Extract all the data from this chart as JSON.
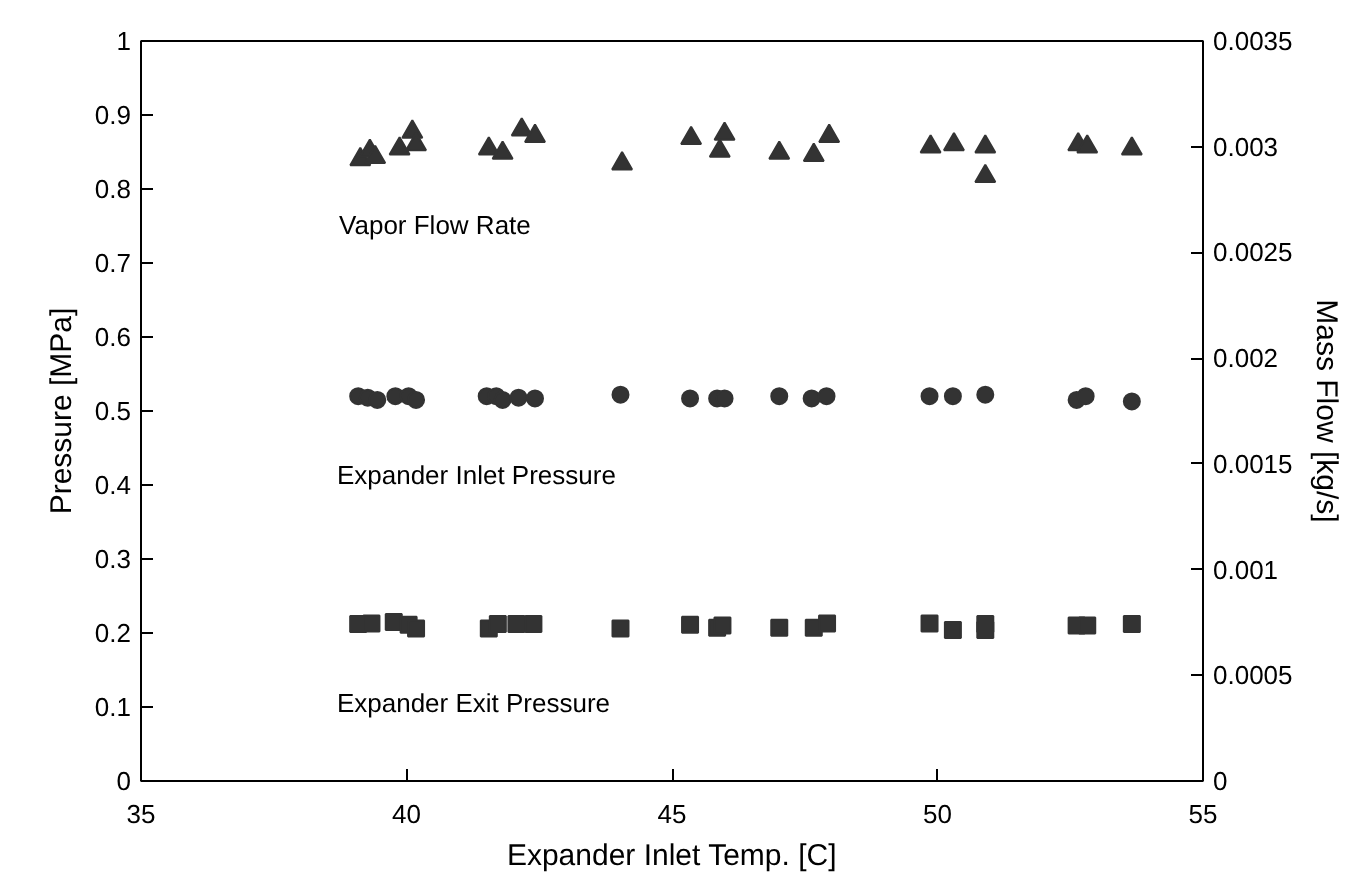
{
  "chart_data": {
    "type": "scatter",
    "xlabel": "Expander Inlet Temp. [C]",
    "ylabel": "Pressure [MPa]",
    "y2label": "Mass Flow [kg/s]",
    "xlim": [
      35,
      55
    ],
    "xticks": [
      35,
      40,
      45,
      50,
      55
    ],
    "ylim": [
      0,
      1
    ],
    "yticks": [
      0,
      0.1,
      0.2,
      0.3,
      0.4,
      0.5,
      0.6,
      0.7,
      0.8,
      0.9,
      1
    ],
    "y2lim": [
      0,
      0.0035
    ],
    "y2ticks": [
      0,
      0.0005,
      0.001,
      0.0015,
      0.002,
      0.0025,
      0.003,
      0.0035
    ],
    "grid": false,
    "series": [
      {
        "name": "Vapor Flow Rate",
        "axis": "y2",
        "marker": "triangle",
        "color": "#333333",
        "x": [
          39.13,
          39.31,
          39.41,
          39.87,
          40.11,
          40.18,
          41.55,
          41.81,
          42.17,
          42.42,
          44.06,
          45.36,
          45.9,
          45.99,
          47.02,
          47.67,
          47.96,
          49.87,
          50.31,
          50.9,
          50.9,
          52.65,
          52.82,
          53.66
        ],
        "values": [
          0.00294,
          0.00298,
          0.00295,
          0.00299,
          0.00307,
          0.00301,
          0.00299,
          0.00297,
          0.00308,
          0.00305,
          0.00292,
          0.00304,
          0.00298,
          0.00306,
          0.00297,
          0.00296,
          0.00305,
          0.003,
          0.00301,
          0.003,
          0.00286,
          0.00301,
          0.003,
          0.00299
        ]
      },
      {
        "name": "Expander Inlet Pressure",
        "marker": "circle",
        "color": "#333333",
        "x": [
          39.09,
          39.27,
          39.45,
          39.79,
          40.04,
          40.18,
          41.51,
          41.69,
          41.81,
          42.11,
          42.42,
          44.03,
          45.34,
          45.85,
          45.99,
          47.02,
          47.63,
          47.91,
          49.85,
          50.29,
          50.9,
          52.62,
          52.79,
          53.66
        ],
        "values": [
          0.52,
          0.518,
          0.515,
          0.52,
          0.52,
          0.515,
          0.52,
          0.52,
          0.515,
          0.518,
          0.517,
          0.522,
          0.517,
          0.517,
          0.517,
          0.52,
          0.517,
          0.52,
          0.52,
          0.52,
          0.522,
          0.515,
          0.52,
          0.513
        ]
      },
      {
        "name": "Expander Exit Pressure",
        "marker": "square",
        "color": "#333333",
        "x": [
          39.09,
          39.34,
          39.76,
          40.04,
          40.18,
          41.55,
          41.72,
          42.07,
          42.39,
          44.03,
          45.34,
          45.85,
          45.95,
          47.02,
          47.67,
          47.92,
          49.85,
          50.29,
          50.9,
          50.9,
          52.62,
          52.82,
          53.66
        ],
        "values": [
          0.212,
          0.213,
          0.215,
          0.211,
          0.206,
          0.206,
          0.212,
          0.212,
          0.212,
          0.206,
          0.211,
          0.207,
          0.21,
          0.207,
          0.207,
          0.213,
          0.213,
          0.204,
          0.204,
          0.212,
          0.21,
          0.21,
          0.212
        ]
      }
    ]
  }
}
